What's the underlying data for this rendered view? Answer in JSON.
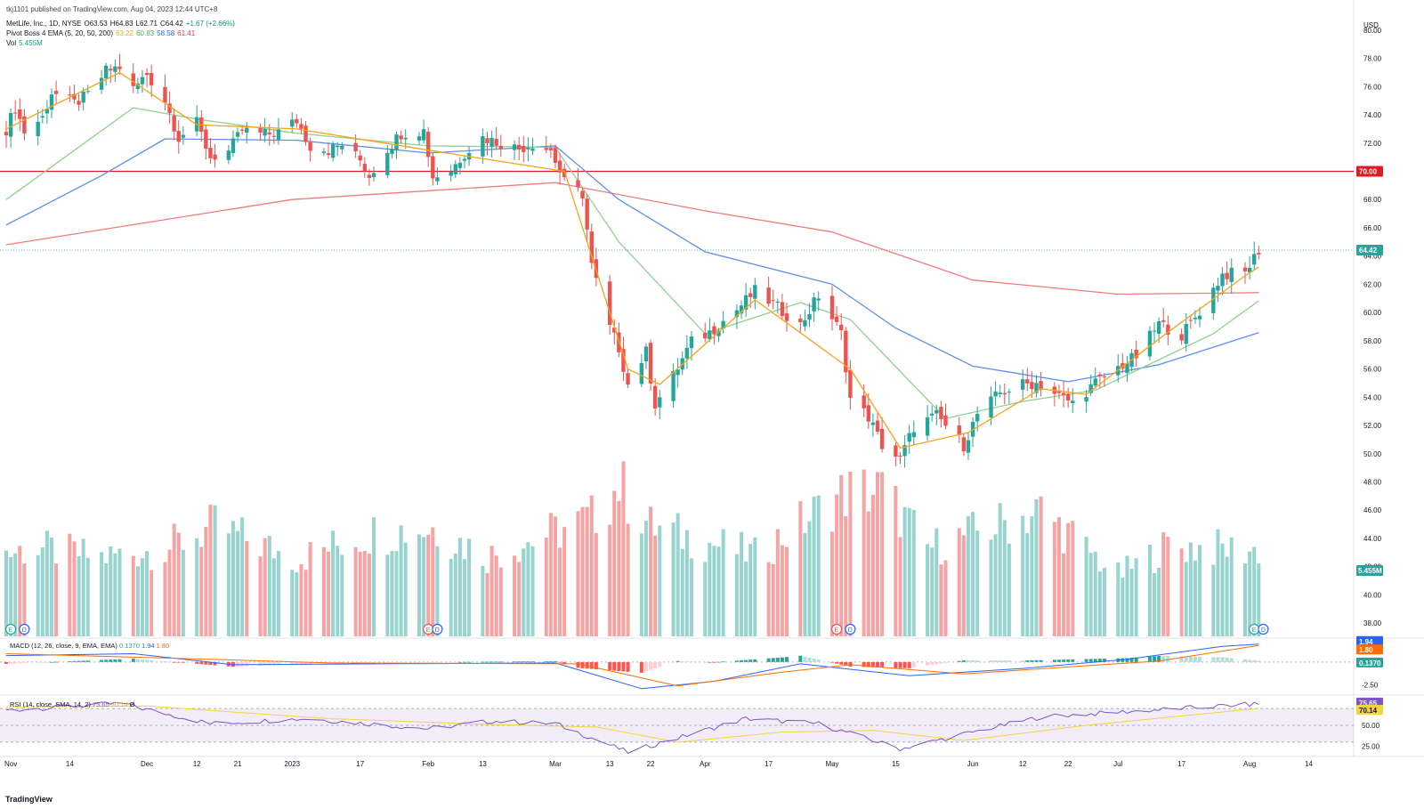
{
  "publish_line": "tkj1101 published on TradingView.com, Aug 04, 2023 12:44 UTC+8",
  "legend": {
    "symbol": "MetLife, Inc., 1D, NYSE",
    "open": "O63.53",
    "high": "H64.83",
    "low": "L62.71",
    "close": "C64.42",
    "change": "+1.67 (+2.66%)",
    "ema_name": "Pivot Boss 4 EMA (5, 20, 50, 200)",
    "ema5": "63.22",
    "ema20": "60.83",
    "ema50": "58.58",
    "ema200": "61.41",
    "vol_name": "Vol",
    "vol_value": "5.455M"
  },
  "currency": "USD",
  "macd_legend": "MACD (12, 26, close, 9, EMA, EMA)",
  "macd_values": [
    "0.1370",
    "1.94",
    "1.80"
  ],
  "rsi_legend": "RSI (14, close, SMA, 14, 2)",
  "rsi_values": [
    "75.65",
    "70.14"
  ],
  "rsi_extra": "Ø",
  "footer_logo": "TradingView",
  "colors": {
    "up": "#26a69a",
    "down": "#ef5350",
    "vol_up": "#97d4cf",
    "vol_down": "#f5a3a3",
    "ema5": "#f7a21b",
    "ema20": "#8fd18f",
    "ema50": "#5b8ff0",
    "ema200": "#f27a7a",
    "hline": "#e01b24",
    "macd": "#2962ff",
    "signal": "#ff6d00",
    "rsi": "#7e57c2",
    "rsi_ma": "#f5d33b"
  },
  "chart_data": {
    "type": "candlestick",
    "symbol": "MET",
    "exchange": "NYSE",
    "interval": "1D",
    "date_range": [
      "2022-10-31",
      "2023-08-03"
    ],
    "ylim": [
      37,
      81
    ],
    "y_ticks": [
      80,
      78,
      76,
      74,
      72,
      70,
      68,
      66,
      64,
      62,
      60,
      58,
      56,
      54,
      52,
      50,
      48,
      46,
      44,
      42,
      40,
      38
    ],
    "x_ticks": [
      "Nov",
      "14",
      "Dec",
      "12",
      "21",
      "2023",
      "17",
      "Feb",
      "13",
      "Mar",
      "13",
      "22",
      "Apr",
      "17",
      "May",
      "15",
      "Jun",
      "12",
      "22",
      "Jul",
      "17",
      "Aug",
      "14"
    ],
    "horizontal_line": {
      "value": 70.0,
      "label": "70.00"
    },
    "last_price": {
      "value": 64.42,
      "label": "64.42"
    },
    "vol_label": "5.455M",
    "close_path": [
      [
        "2022-10-31",
        73.0
      ],
      [
        "2022-11-02",
        74.5
      ],
      [
        "2022-11-04",
        72.8
      ],
      [
        "2022-11-08",
        73.8
      ],
      [
        "2022-11-10",
        75.6
      ],
      [
        "2022-11-15",
        74.8
      ],
      [
        "2022-11-18",
        75.4
      ],
      [
        "2022-11-22",
        77.1
      ],
      [
        "2022-11-25",
        77.4
      ],
      [
        "2022-11-28",
        75.8
      ],
      [
        "2022-12-01",
        76.9
      ],
      [
        "2022-12-05",
        75.0
      ],
      [
        "2022-12-08",
        72.4
      ],
      [
        "2022-12-12",
        73.4
      ],
      [
        "2022-12-15",
        71.0
      ],
      [
        "2022-12-19",
        71.4
      ],
      [
        "2022-12-22",
        72.9
      ],
      [
        "2022-12-27",
        72.6
      ],
      [
        "2022-12-30",
        72.8
      ],
      [
        "2023-01-03",
        73.6
      ],
      [
        "2023-01-06",
        71.8
      ],
      [
        "2023-01-10",
        71.5
      ],
      [
        "2023-01-13",
        71.9
      ],
      [
        "2023-01-17",
        70.8
      ],
      [
        "2023-01-19",
        69.7
      ],
      [
        "2023-01-23",
        71.6
      ],
      [
        "2023-01-26",
        72.7
      ],
      [
        "2023-01-31",
        72.9
      ],
      [
        "2023-02-02",
        69.6
      ],
      [
        "2023-02-06",
        70.1
      ],
      [
        "2023-02-09",
        71.3
      ],
      [
        "2023-02-13",
        72.4
      ],
      [
        "2023-02-16",
        72.1
      ],
      [
        "2023-02-21",
        71.6
      ],
      [
        "2023-02-24",
        72.0
      ],
      [
        "2023-02-28",
        71.5
      ],
      [
        "2023-03-03",
        69.2
      ],
      [
        "2023-03-07",
        68.4
      ],
      [
        "2023-03-09",
        63.3
      ],
      [
        "2023-03-13",
        58.9
      ],
      [
        "2023-03-15",
        57.5
      ],
      [
        "2023-03-17",
        54.9
      ],
      [
        "2023-03-21",
        57.2
      ],
      [
        "2023-03-23",
        53.5
      ],
      [
        "2023-03-27",
        55.5
      ],
      [
        "2023-03-31",
        57.9
      ],
      [
        "2023-04-04",
        58.6
      ],
      [
        "2023-04-10",
        60.2
      ],
      [
        "2023-04-14",
        61.5
      ],
      [
        "2023-04-18",
        60.6
      ],
      [
        "2023-04-24",
        59.1
      ],
      [
        "2023-04-28",
        61.2
      ],
      [
        "2023-05-03",
        58.5
      ],
      [
        "2023-05-05",
        53.9
      ],
      [
        "2023-05-09",
        52.6
      ],
      [
        "2023-05-12",
        50.6
      ],
      [
        "2023-05-16",
        49.6
      ],
      [
        "2023-05-19",
        51.9
      ],
      [
        "2023-05-24",
        52.7
      ],
      [
        "2023-05-30",
        50.6
      ],
      [
        "2023-06-02",
        52.8
      ],
      [
        "2023-06-07",
        54.3
      ],
      [
        "2023-06-12",
        54.9
      ],
      [
        "2023-06-15",
        55.0
      ],
      [
        "2023-06-20",
        54.1
      ],
      [
        "2023-06-23",
        53.6
      ],
      [
        "2023-06-28",
        55.0
      ],
      [
        "2023-07-03",
        56.1
      ],
      [
        "2023-07-07",
        56.9
      ],
      [
        "2023-07-12",
        59.2
      ],
      [
        "2023-07-17",
        58.4
      ],
      [
        "2023-07-21",
        60.1
      ],
      [
        "2023-07-26",
        62.7
      ],
      [
        "2023-07-31",
        62.8
      ],
      [
        "2023-08-03",
        64.42
      ]
    ],
    "ema200_path": [
      [
        "2022-10-31",
        64.8
      ],
      [
        "2023-01-02",
        68.0
      ],
      [
        "2023-03-01",
        69.2
      ],
      [
        "2023-04-03",
        67.2
      ],
      [
        "2023-05-01",
        65.7
      ],
      [
        "2023-06-01",
        62.3
      ],
      [
        "2023-07-03",
        61.3
      ],
      [
        "2023-08-03",
        61.41
      ]
    ],
    "ema50_path": [
      [
        "2022-10-31",
        66.2
      ],
      [
        "2022-11-21",
        69.7
      ],
      [
        "2022-12-05",
        72.3
      ],
      [
        "2023-01-03",
        72.2
      ],
      [
        "2023-02-01",
        71.3
      ],
      [
        "2023-03-01",
        71.8
      ],
      [
        "2023-03-15",
        68.0
      ],
      [
        "2023-04-03",
        64.3
      ],
      [
        "2023-05-01",
        62.0
      ],
      [
        "2023-05-15",
        58.9
      ],
      [
        "2023-06-01",
        56.2
      ],
      [
        "2023-06-22",
        55.1
      ],
      [
        "2023-07-12",
        56.3
      ],
      [
        "2023-08-03",
        58.58
      ]
    ],
    "ema20_path": [
      [
        "2022-10-31",
        68.0
      ],
      [
        "2022-11-28",
        74.5
      ],
      [
        "2022-12-12",
        73.7
      ],
      [
        "2023-01-03",
        72.7
      ],
      [
        "2023-02-01",
        71.8
      ],
      [
        "2023-03-01",
        71.7
      ],
      [
        "2023-03-15",
        65.0
      ],
      [
        "2023-04-03",
        58.5
      ],
      [
        "2023-04-24",
        60.7
      ],
      [
        "2023-05-05",
        59.5
      ],
      [
        "2023-05-26",
        52.5
      ],
      [
        "2023-06-12",
        53.7
      ],
      [
        "2023-06-28",
        54.5
      ],
      [
        "2023-07-24",
        58.5
      ],
      [
        "2023-08-03",
        60.83
      ]
    ],
    "ema5_path": [
      [
        "2022-10-31",
        73.0
      ],
      [
        "2022-11-25",
        77.0
      ],
      [
        "2022-12-12",
        73.3
      ],
      [
        "2023-01-03",
        73.0
      ],
      [
        "2023-02-01",
        71.5
      ],
      [
        "2023-03-03",
        70.0
      ],
      [
        "2023-03-17",
        56.0
      ],
      [
        "2023-03-24",
        54.9
      ],
      [
        "2023-04-14",
        60.9
      ],
      [
        "2023-05-05",
        56.0
      ],
      [
        "2023-05-16",
        50.4
      ],
      [
        "2023-05-31",
        51.5
      ],
      [
        "2023-06-16",
        54.6
      ],
      [
        "2023-06-26",
        54.2
      ],
      [
        "2023-07-14",
        58.6
      ],
      [
        "2023-07-31",
        62.6
      ],
      [
        "2023-08-03",
        63.22
      ]
    ],
    "volume_series": [
      [
        "2022-10-31",
        0.4,
        "up"
      ],
      [
        "2022-11-07",
        0.44,
        "down"
      ],
      [
        "2022-11-21",
        0.36,
        "up"
      ],
      [
        "2022-12-05",
        0.44,
        "down"
      ],
      [
        "2022-12-16",
        0.63,
        "up"
      ],
      [
        "2023-01-03",
        0.35,
        "down"
      ],
      [
        "2023-01-20",
        0.58,
        "up"
      ],
      [
        "2023-02-02",
        0.62,
        "down"
      ],
      [
        "2023-02-14",
        0.37,
        "up"
      ],
      [
        "2023-03-09",
        0.7,
        "down"
      ],
      [
        "2023-03-15",
        1.0,
        "down"
      ],
      [
        "2023-03-22",
        0.63,
        "up"
      ],
      [
        "2023-04-14",
        0.38,
        "up"
      ],
      [
        "2023-05-04",
        0.93,
        "down"
      ],
      [
        "2023-05-12",
        0.95,
        "down"
      ],
      [
        "2023-05-22",
        0.44,
        "up"
      ],
      [
        "2023-06-16",
        0.77,
        "up"
      ],
      [
        "2023-07-03",
        0.2,
        "up"
      ],
      [
        "2023-07-14",
        0.46,
        "down"
      ],
      [
        "2023-08-03",
        0.42,
        "up"
      ]
    ],
    "event_markers": [
      {
        "date": "2022-11-01",
        "label": "E"
      },
      {
        "date": "2022-11-04",
        "label": "D"
      },
      {
        "date": "2023-02-01",
        "label": "E"
      },
      {
        "date": "2023-02-03",
        "label": "D"
      },
      {
        "date": "2023-05-02",
        "label": "E"
      },
      {
        "date": "2023-05-05",
        "label": "D"
      },
      {
        "date": "2023-08-02",
        "label": "E"
      },
      {
        "date": "2023-08-04",
        "label": "D"
      }
    ],
    "macd": {
      "ylim": [
        -3.5,
        2.5
      ],
      "y_ticks": [
        -2.5
      ],
      "macd_path": [
        [
          "2022-10-31",
          0.7
        ],
        [
          "2022-11-28",
          0.9
        ],
        [
          "2022-12-20",
          -0.3
        ],
        [
          "2023-01-20",
          -0.2
        ],
        [
          "2023-03-01",
          -0.1
        ],
        [
          "2023-03-20",
          -2.9
        ],
        [
          "2023-04-05",
          -2.1
        ],
        [
          "2023-04-24",
          -0.2
        ],
        [
          "2023-05-18",
          -1.5
        ],
        [
          "2023-06-12",
          -0.7
        ],
        [
          "2023-07-05",
          0.3
        ],
        [
          "2023-07-26",
          1.7
        ],
        [
          "2023-08-03",
          1.94
        ]
      ],
      "signal_path": [
        [
          "2022-10-31",
          0.9
        ],
        [
          "2022-12-01",
          0.5
        ],
        [
          "2023-01-10",
          -0.1
        ],
        [
          "2023-03-06",
          -0.2
        ],
        [
          "2023-03-28",
          -2.6
        ],
        [
          "2023-04-20",
          -1.1
        ],
        [
          "2023-05-05",
          -0.3
        ],
        [
          "2023-05-30",
          -1.3
        ],
        [
          "2023-06-20",
          -0.6
        ],
        [
          "2023-07-12",
          0.1
        ],
        [
          "2023-08-03",
          1.8
        ]
      ]
    },
    "rsi": {
      "ylim": [
        15,
        85
      ],
      "y_ticks": [
        75.65,
        50,
        25
      ],
      "bands": [
        70,
        50,
        30
      ],
      "rsi_path": [
        [
          "2022-10-31",
          68
        ],
        [
          "2022-11-25",
          76
        ],
        [
          "2022-12-15",
          52
        ],
        [
          "2023-01-05",
          58
        ],
        [
          "2023-02-01",
          46
        ],
        [
          "2023-02-15",
          55
        ],
        [
          "2023-03-01",
          52
        ],
        [
          "2023-03-17",
          18
        ],
        [
          "2023-04-12",
          58
        ],
        [
          "2023-04-28",
          52
        ],
        [
          "2023-05-16",
          22
        ],
        [
          "2023-06-01",
          42
        ],
        [
          "2023-06-16",
          60
        ],
        [
          "2023-07-10",
          68
        ],
        [
          "2023-08-03",
          75.65
        ]
      ],
      "ma_path": [
        [
          "2022-10-31",
          72
        ],
        [
          "2022-12-01",
          73
        ],
        [
          "2023-01-10",
          58
        ],
        [
          "2023-02-15",
          51
        ],
        [
          "2023-03-10",
          48
        ],
        [
          "2023-03-28",
          30
        ],
        [
          "2023-04-20",
          42
        ],
        [
          "2023-05-10",
          44
        ],
        [
          "2023-05-30",
          32
        ],
        [
          "2023-06-26",
          50
        ],
        [
          "2023-08-03",
          70.14
        ]
      ]
    }
  }
}
